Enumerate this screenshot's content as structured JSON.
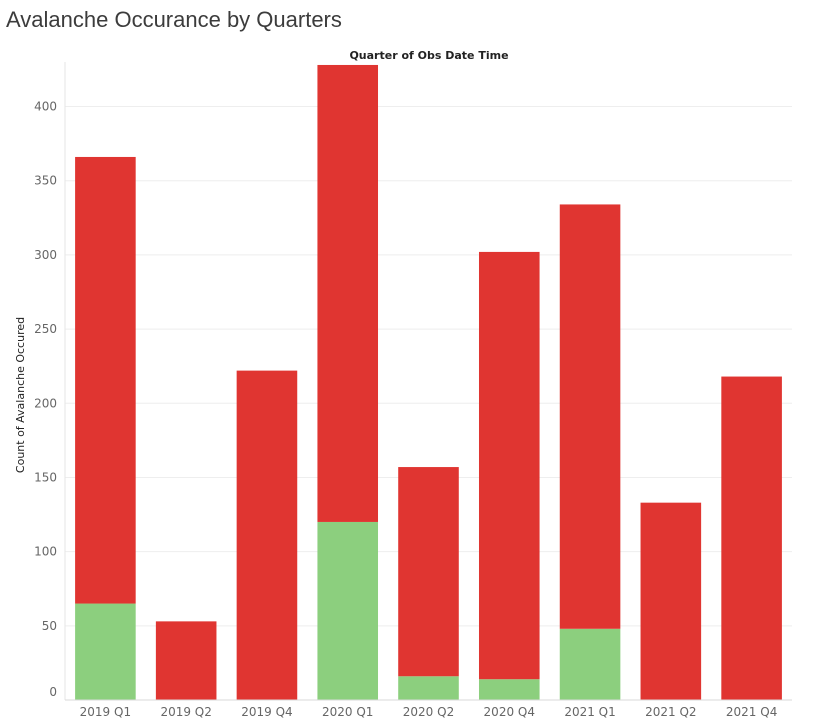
{
  "chart_data": {
    "type": "bar",
    "title": "Avalanche Occurance by Quarters",
    "column_header": "Quarter of Obs Date Time",
    "ylabel": "Count of Avalanche Occured",
    "categories": [
      "2019 Q1",
      "2019 Q2",
      "2019 Q4",
      "2020 Q1",
      "2020 Q2",
      "2020 Q4",
      "2021 Q1",
      "2021 Q2",
      "2021 Q4"
    ],
    "stacked": true,
    "series": [
      {
        "color": "#8ccf7e",
        "values": [
          65,
          0,
          0,
          120,
          16,
          14,
          48,
          0,
          0
        ]
      },
      {
        "color": "#e03531",
        "values": [
          301,
          53,
          222,
          308,
          141,
          288,
          286,
          133,
          218
        ]
      }
    ],
    "ylim": [
      0,
      430
    ],
    "yticks": [
      0,
      50,
      100,
      150,
      200,
      250,
      300,
      350,
      400
    ],
    "grid": true
  }
}
